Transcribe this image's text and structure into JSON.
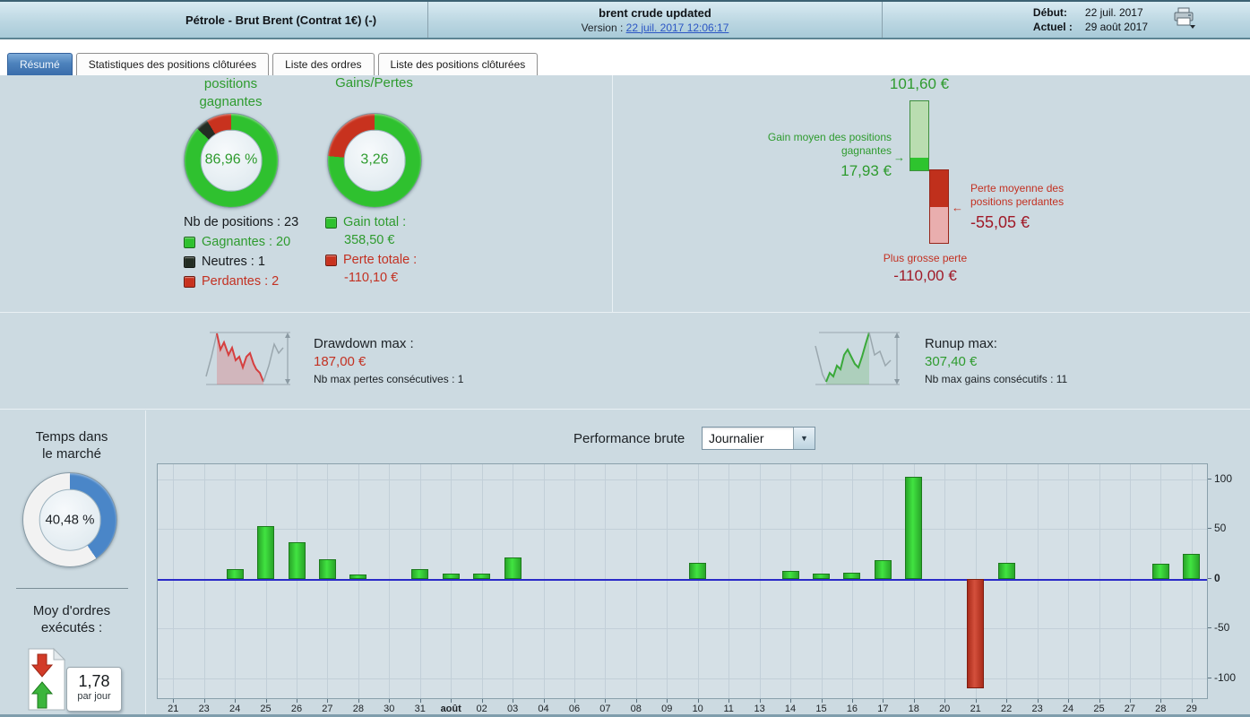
{
  "colors": {
    "green_text": "#2e9b2e",
    "red_text": "#c33122",
    "darkred_text": "#a01a28",
    "seg_green": "#2fc12f",
    "seg_black": "#232d23",
    "seg_red": "#c8321e",
    "seg_blue": "#4a86c8",
    "seg_white": "#f2f2f2",
    "zero_line": "#2a2ac8",
    "gain_bar_light": "#b9ddb0",
    "gain_bar_dark": "#2ec42e",
    "loss_bar_dark": "#c0301c",
    "loss_bar_light": "#e9aeae"
  },
  "header": {
    "instrument": "Pétrole - Brut Brent (Contrat 1€) (-)",
    "strategy_name": "brent crude updated",
    "version_label": "Version :",
    "version_link": "22 juil. 2017 12:06:17",
    "start_label": "Début:",
    "start_date": "22 juil. 2017",
    "current_label": "Actuel :",
    "current_date": "29 août 2017"
  },
  "tabs": [
    {
      "label": "Résumé",
      "active": true
    },
    {
      "label": "Statistiques des positions clôturées",
      "active": false
    },
    {
      "label": "Liste des ordres",
      "active": false
    },
    {
      "label": "Liste des positions clôturées",
      "active": false
    }
  ],
  "winning_positions": {
    "title": "positions\ngagnantes",
    "value": "86,96 %",
    "legend_total": "Nb de positions : 23",
    "legend_winning": "Gagnantes : 20",
    "legend_neutral": "Neutres : 1",
    "legend_losing": "Perdantes : 2"
  },
  "gains_losses": {
    "title": "Gains/Pertes",
    "value": "3,26",
    "gain_label": "Gain total :",
    "gain_value": "358,50 €",
    "loss_label": "Perte totale :",
    "loss_value": "-110,10 €"
  },
  "donuts": {
    "winning": {
      "segments": [
        {
          "color": "seg_green",
          "pct": 86.96
        },
        {
          "color": "seg_black",
          "pct": 4.35
        },
        {
          "color": "seg_red",
          "pct": 8.69
        }
      ]
    },
    "gains": {
      "segments": [
        {
          "color": "seg_green",
          "pct": 76.5
        },
        {
          "color": "seg_red",
          "pct": 23.5
        }
      ]
    },
    "time": {
      "segments": [
        {
          "color": "seg_blue",
          "pct": 40.48
        },
        {
          "color": "seg_white",
          "pct": 59.52
        }
      ]
    }
  },
  "gain_loss_chart": {
    "biggest_gain_value": "101,60 €",
    "avg_gain_label": "Gain moyen des positions\ngagnantes",
    "avg_gain_value": "17,93 €",
    "avg_loss_label": "Perte moyenne des\npositions perdantes",
    "avg_loss_value": "-55,05 €",
    "biggest_loss_label": "Plus grosse perte",
    "biggest_loss_value": "-110,00 €"
  },
  "drawdown": {
    "label": "Drawdown max :",
    "value": "187,00 €",
    "consecutive": "Nb max pertes consécutives : 1"
  },
  "runup": {
    "label": "Runup max:",
    "value": "307,40 €",
    "consecutive": "Nb max gains consécutifs : 11"
  },
  "time_in_market": {
    "title": "Temps dans\nle marché",
    "value": "40,48 %"
  },
  "orders": {
    "title": "Moy d'ordres\nexécutés :",
    "value": "1,78",
    "unit": "par jour"
  },
  "performance": {
    "label": "Performance brute",
    "period": "Journalier"
  },
  "chart_data": {
    "type": "bar",
    "title": "Performance brute (Journalier)",
    "categories": [
      "21",
      "23",
      "24",
      "25",
      "26",
      "27",
      "28",
      "30",
      "31",
      "août",
      "02",
      "03",
      "04",
      "06",
      "07",
      "08",
      "09",
      "10",
      "11",
      "13",
      "14",
      "15",
      "16",
      "17",
      "18",
      "20",
      "21",
      "22",
      "23",
      "24",
      "25",
      "27",
      "28",
      "29"
    ],
    "values": [
      0,
      0,
      10,
      53,
      37,
      20,
      4,
      0,
      10,
      5,
      5,
      21,
      0,
      0,
      0,
      0,
      0,
      16,
      0,
      0,
      8,
      5,
      6,
      19,
      102,
      0,
      -110,
      16,
      0,
      0,
      0,
      0,
      15,
      25
    ],
    "yticks": [
      100,
      50,
      0,
      -50,
      -100
    ],
    "ylim": [
      -120,
      115
    ],
    "xlabel": "",
    "ylabel": "",
    "grid": true,
    "bold_category": "août",
    "positive_color": "#2fc42f",
    "negative_color": "#c43a28"
  }
}
